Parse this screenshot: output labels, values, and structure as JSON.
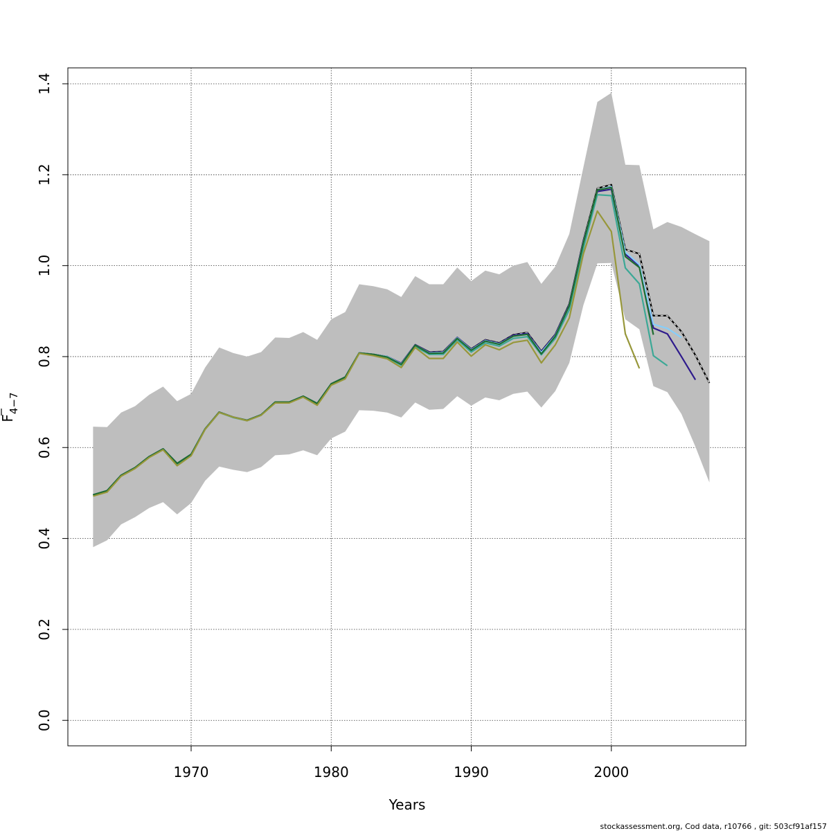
{
  "chart_data": {
    "type": "line",
    "xlabel": "Years",
    "ylabel": "F",
    "ylabel_subscript": "4−7",
    "footer": "stockassessment.org, Cod  data, r10766 , git: 503cf91af157",
    "xlim": [
      1961.2,
      2009.6
    ],
    "ylim": [
      -0.056,
      1.435
    ],
    "x_ticks": [
      1970,
      1980,
      1990,
      2000
    ],
    "y_ticks": [
      0.0,
      0.2,
      0.4,
      0.6,
      0.8,
      1.0,
      1.2,
      1.4
    ],
    "y_tick_labels": [
      "0.0",
      "0.2",
      "0.4",
      "0.6",
      "0.8",
      "1.0",
      "1.2",
      "1.4"
    ],
    "grid": true,
    "colors": {
      "band": "#bebebe",
      "base": "#000000",
      "peel1": "#2e1a8c",
      "peel2": "#87cefa",
      "peel3": "#3ca896",
      "peel4": "#1e6b2f",
      "peel5": "#97973a"
    },
    "band": {
      "x": [
        1963,
        1964,
        1965,
        1966,
        1967,
        1968,
        1969,
        1970,
        1971,
        1972,
        1973,
        1974,
        1975,
        1976,
        1977,
        1978,
        1979,
        1980,
        1981,
        1982,
        1983,
        1984,
        1985,
        1986,
        1987,
        1988,
        1989,
        1990,
        1991,
        1992,
        1993,
        1994,
        1995,
        1996,
        1997,
        1998,
        1999,
        2000,
        2001,
        2002,
        2003,
        2004,
        2005,
        2006,
        2007
      ],
      "upper": [
        0.646,
        0.645,
        0.677,
        0.691,
        0.716,
        0.734,
        0.702,
        0.718,
        0.776,
        0.82,
        0.808,
        0.8,
        0.81,
        0.842,
        0.841,
        0.854,
        0.837,
        0.882,
        0.898,
        0.959,
        0.955,
        0.948,
        0.931,
        0.977,
        0.959,
        0.959,
        0.996,
        0.966,
        0.989,
        0.981,
        1.0,
        1.008,
        0.96,
        0.998,
        1.07,
        1.216,
        1.36,
        1.38,
        1.222,
        1.221,
        1.08,
        1.096,
        1.085,
        1.069,
        1.054
      ],
      "lower": [
        0.381,
        0.396,
        0.431,
        0.447,
        0.467,
        0.48,
        0.453,
        0.478,
        0.527,
        0.558,
        0.551,
        0.546,
        0.557,
        0.583,
        0.585,
        0.594,
        0.583,
        0.62,
        0.635,
        0.682,
        0.681,
        0.677,
        0.666,
        0.699,
        0.683,
        0.685,
        0.713,
        0.692,
        0.71,
        0.704,
        0.718,
        0.723,
        0.688,
        0.724,
        0.786,
        0.913,
        1.005,
        1.006,
        0.882,
        0.86,
        0.735,
        0.722,
        0.674,
        0.602,
        0.523
      ]
    },
    "series": [
      {
        "key": "base",
        "dashed": true,
        "x": [
          1963,
          1964,
          1965,
          1966,
          1967,
          1968,
          1969,
          1970,
          1971,
          1972,
          1973,
          1974,
          1975,
          1976,
          1977,
          1978,
          1979,
          1980,
          1981,
          1982,
          1983,
          1984,
          1985,
          1986,
          1987,
          1988,
          1989,
          1990,
          1991,
          1992,
          1993,
          1994,
          1995,
          1996,
          1997,
          1998,
          1999,
          2000,
          2001,
          2002,
          2003,
          2004,
          2005,
          2006,
          2007
        ],
        "values": [
          0.496,
          0.505,
          0.539,
          0.556,
          0.58,
          0.597,
          0.565,
          0.585,
          0.641,
          0.678,
          0.667,
          0.66,
          0.672,
          0.7,
          0.7,
          0.713,
          0.697,
          0.74,
          0.755,
          0.808,
          0.805,
          0.8,
          0.785,
          0.826,
          0.81,
          0.811,
          0.842,
          0.817,
          0.837,
          0.83,
          0.848,
          0.853,
          0.812,
          0.849,
          0.916,
          1.055,
          1.17,
          1.178,
          1.036,
          1.026,
          0.89,
          0.89,
          0.855,
          0.803,
          0.742
        ]
      },
      {
        "key": "peel1",
        "dashed": false,
        "x": [
          1963,
          1964,
          1965,
          1966,
          1967,
          1968,
          1969,
          1970,
          1971,
          1972,
          1973,
          1974,
          1975,
          1976,
          1977,
          1978,
          1979,
          1980,
          1981,
          1982,
          1983,
          1984,
          1985,
          1986,
          1987,
          1988,
          1989,
          1990,
          1991,
          1992,
          1993,
          1994,
          1995,
          1996,
          1997,
          1998,
          1999,
          2000,
          2001,
          2002,
          2003,
          2004,
          2005,
          2006
        ],
        "values": [
          0.496,
          0.505,
          0.539,
          0.556,
          0.58,
          0.597,
          0.565,
          0.585,
          0.641,
          0.678,
          0.667,
          0.66,
          0.672,
          0.7,
          0.7,
          0.713,
          0.697,
          0.74,
          0.755,
          0.808,
          0.805,
          0.8,
          0.785,
          0.826,
          0.809,
          0.81,
          0.842,
          0.816,
          0.836,
          0.829,
          0.847,
          0.851,
          0.811,
          0.848,
          0.914,
          1.053,
          1.163,
          1.168,
          1.025,
          1.0,
          0.863,
          0.85,
          0.8,
          0.749
        ]
      },
      {
        "key": "peel2",
        "dashed": false,
        "x": [
          1963,
          1964,
          1965,
          1966,
          1967,
          1968,
          1969,
          1970,
          1971,
          1972,
          1973,
          1974,
          1975,
          1976,
          1977,
          1978,
          1979,
          1980,
          1981,
          1982,
          1983,
          1984,
          1985,
          1986,
          1987,
          1988,
          1989,
          1990,
          1991,
          1992,
          1993,
          1994,
          1995,
          1996,
          1997,
          1998,
          1999,
          2000,
          2001,
          2002,
          2003,
          2004,
          2005
        ],
        "values": [
          0.496,
          0.505,
          0.539,
          0.556,
          0.58,
          0.597,
          0.565,
          0.585,
          0.641,
          0.678,
          0.667,
          0.66,
          0.672,
          0.7,
          0.7,
          0.713,
          0.697,
          0.74,
          0.755,
          0.808,
          0.805,
          0.8,
          0.784,
          0.825,
          0.808,
          0.809,
          0.841,
          0.815,
          0.835,
          0.828,
          0.845,
          0.849,
          0.809,
          0.846,
          0.912,
          1.051,
          1.166,
          1.174,
          1.03,
          1.002,
          0.871,
          0.862,
          0.842
        ]
      },
      {
        "key": "peel3",
        "dashed": false,
        "x": [
          1963,
          1964,
          1965,
          1966,
          1967,
          1968,
          1969,
          1970,
          1971,
          1972,
          1973,
          1974,
          1975,
          1976,
          1977,
          1978,
          1979,
          1980,
          1981,
          1982,
          1983,
          1984,
          1985,
          1986,
          1987,
          1988,
          1989,
          1990,
          1991,
          1992,
          1993,
          1994,
          1995,
          1996,
          1997,
          1998,
          1999,
          2000,
          2001,
          2002,
          2003,
          2004
        ],
        "values": [
          0.495,
          0.504,
          0.538,
          0.555,
          0.579,
          0.596,
          0.564,
          0.584,
          0.64,
          0.677,
          0.666,
          0.659,
          0.671,
          0.699,
          0.699,
          0.712,
          0.696,
          0.739,
          0.754,
          0.807,
          0.803,
          0.798,
          0.781,
          0.822,
          0.805,
          0.805,
          0.837,
          0.81,
          0.83,
          0.823,
          0.84,
          0.844,
          0.804,
          0.84,
          0.903,
          1.038,
          1.156,
          1.154,
          0.995,
          0.96,
          0.802,
          0.78
        ]
      },
      {
        "key": "peel4",
        "dashed": false,
        "x": [
          1963,
          1964,
          1965,
          1966,
          1967,
          1968,
          1969,
          1970,
          1971,
          1972,
          1973,
          1974,
          1975,
          1976,
          1977,
          1978,
          1979,
          1980,
          1981,
          1982,
          1983,
          1984,
          1985,
          1986,
          1987,
          1988,
          1989,
          1990,
          1991,
          1992,
          1993,
          1994,
          1995,
          1996,
          1997,
          1998,
          1999,
          2000,
          2001,
          2002,
          2003
        ],
        "values": [
          0.496,
          0.505,
          0.539,
          0.556,
          0.58,
          0.597,
          0.565,
          0.585,
          0.641,
          0.678,
          0.667,
          0.66,
          0.672,
          0.7,
          0.7,
          0.713,
          0.697,
          0.74,
          0.755,
          0.808,
          0.805,
          0.799,
          0.783,
          0.825,
          0.807,
          0.808,
          0.84,
          0.814,
          0.834,
          0.827,
          0.845,
          0.849,
          0.806,
          0.845,
          0.912,
          1.05,
          1.166,
          1.172,
          1.02,
          0.996,
          0.848
        ]
      },
      {
        "key": "peel5",
        "dashed": false,
        "x": [
          1963,
          1964,
          1965,
          1966,
          1967,
          1968,
          1969,
          1970,
          1971,
          1972,
          1973,
          1974,
          1975,
          1976,
          1977,
          1978,
          1979,
          1980,
          1981,
          1982,
          1983,
          1984,
          1985,
          1986,
          1987,
          1988,
          1989,
          1990,
          1991,
          1992,
          1993,
          1994,
          1995,
          1996,
          1997,
          1998,
          1999,
          2000,
          2001,
          2002
        ],
        "values": [
          0.493,
          0.502,
          0.537,
          0.554,
          0.578,
          0.595,
          0.56,
          0.582,
          0.64,
          0.677,
          0.667,
          0.659,
          0.671,
          0.698,
          0.698,
          0.711,
          0.693,
          0.737,
          0.751,
          0.807,
          0.802,
          0.795,
          0.776,
          0.82,
          0.796,
          0.796,
          0.832,
          0.801,
          0.826,
          0.815,
          0.831,
          0.836,
          0.786,
          0.826,
          0.885,
          1.026,
          1.12,
          1.075,
          0.85,
          0.774
        ]
      }
    ]
  }
}
